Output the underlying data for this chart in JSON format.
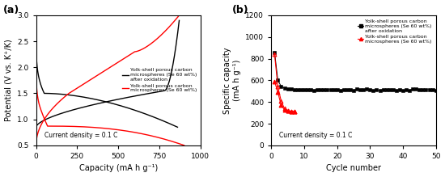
{
  "panel_a": {
    "xlabel": "Capacity (mA h g⁻¹)",
    "ylabel": "Potential (V vs. K⁺/K)",
    "xlim": [
      0,
      1000
    ],
    "ylim": [
      0.5,
      3.0
    ],
    "xticks": [
      0,
      250,
      500,
      750,
      1000
    ],
    "yticks": [
      0.5,
      1.0,
      1.5,
      2.0,
      2.5,
      3.0
    ],
    "annotation": "Current density = 0.1 C",
    "legend_black": "Yolk-shell porous carbon\nmicrospheres (Se 60 wt%)\nafter oxidation",
    "legend_red": "Yolk-shell porous carbon\nmicrospheres (Se 60 wt%)"
  },
  "panel_b": {
    "xlabel": "Cycle number",
    "ylabel": "Specific capacity\n(mA h g⁻¹)",
    "xlim": [
      0,
      50
    ],
    "ylim": [
      0,
      1200
    ],
    "xticks": [
      0,
      10,
      20,
      30,
      40,
      50
    ],
    "yticks": [
      0,
      200,
      400,
      600,
      800,
      1000,
      1200
    ],
    "annotation": "Current density = 0.1 C",
    "legend_black": "Yolk-shell porous carbon\nmicrospheres (Se 60 wt%)\nafter oxidation",
    "legend_red": "Yolk-shell porous carbon\nmicrospheres (Se 60 wt%)"
  }
}
